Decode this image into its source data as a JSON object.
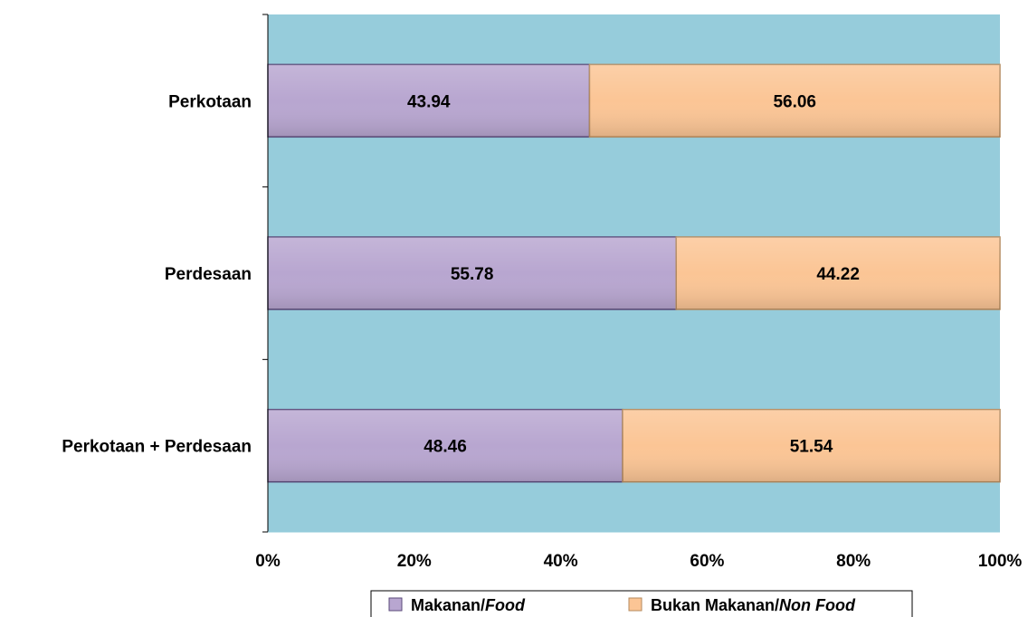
{
  "chart_data": {
    "type": "bar",
    "orientation": "horizontal",
    "stacked": "percent",
    "categories": [
      "Perkotaan",
      "Perdesaan",
      "Perkotaan + Perdesaan"
    ],
    "series": [
      {
        "name": "Makanan/Food",
        "name_plain": "Makanan/",
        "name_italic": "Food",
        "color": "#b8a6d0",
        "values": [
          43.94,
          55.78,
          48.46
        ]
      },
      {
        "name": "Bukan Makanan/Non Food",
        "name_plain": "Bukan Makanan/",
        "name_italic": "Non Food",
        "color": "#fbc595",
        "values": [
          56.06,
          44.22,
          51.54
        ]
      }
    ],
    "xlim": [
      0,
      100
    ],
    "x_ticks": [
      "0%",
      "20%",
      "40%",
      "60%",
      "80%",
      "100%"
    ],
    "plot_background": "#96ccdb",
    "grid": false,
    "legend_position": "bottom"
  }
}
